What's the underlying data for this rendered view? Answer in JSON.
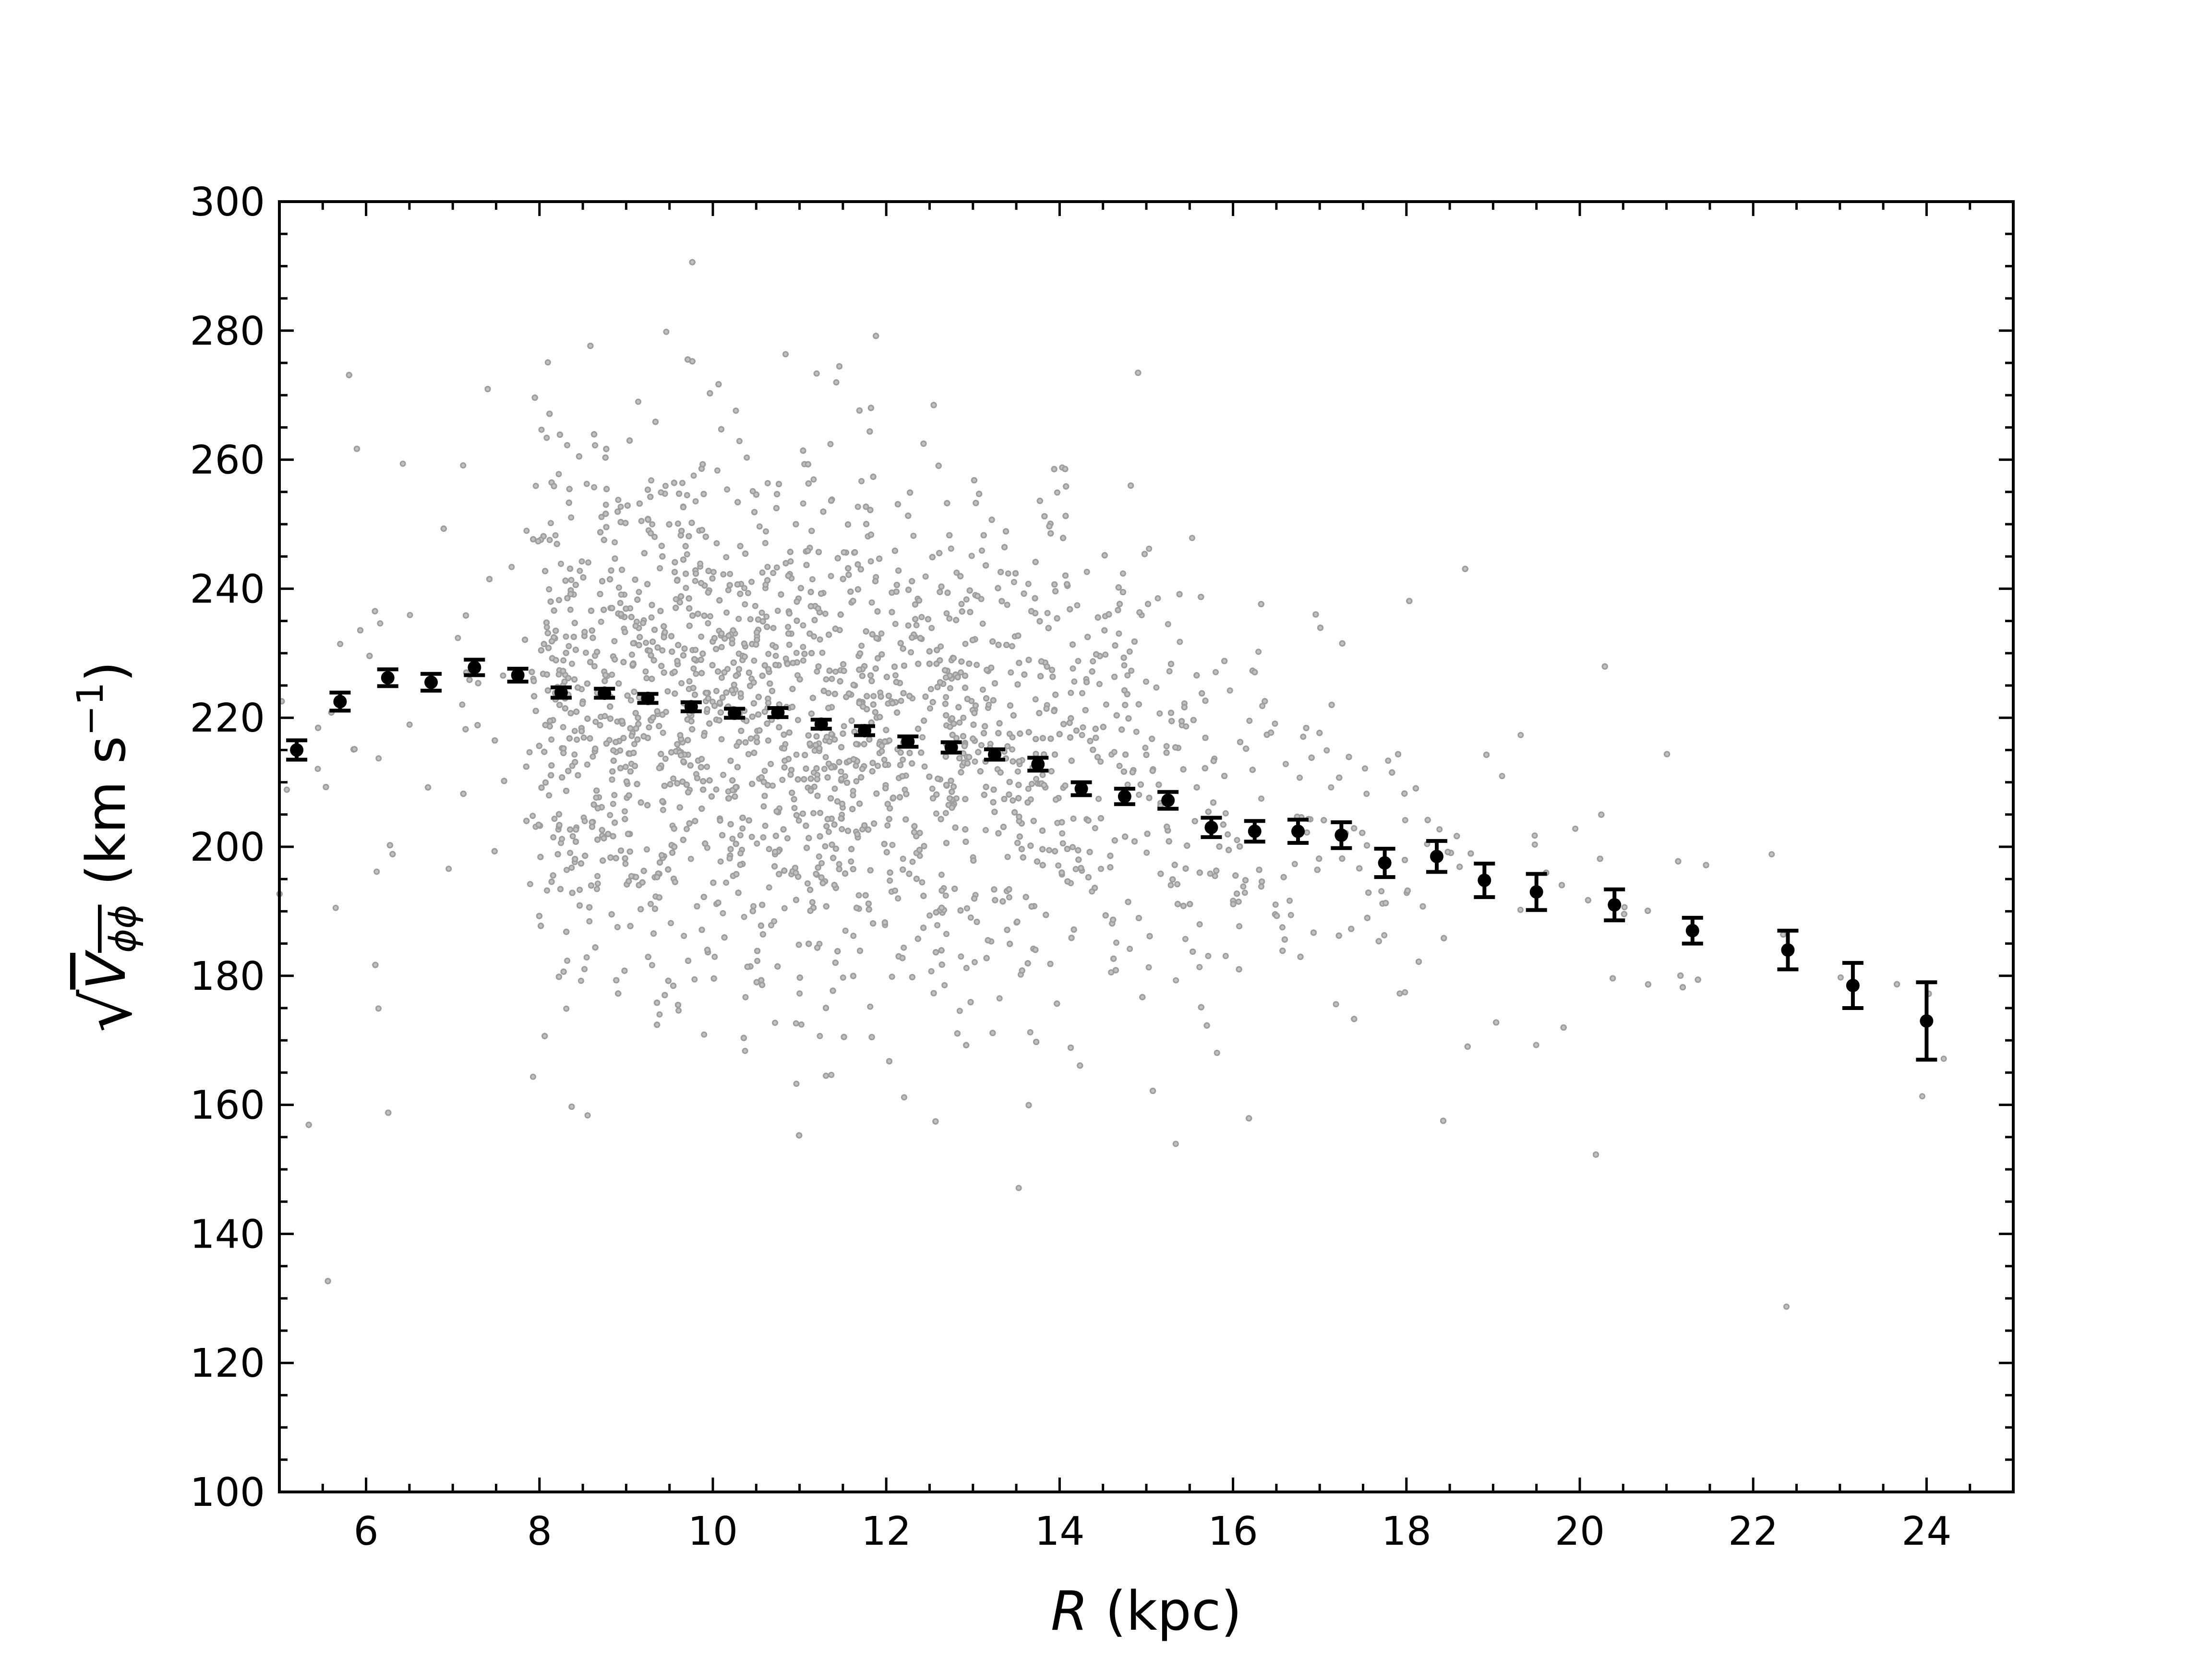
{
  "colors": {
    "scatter": "#a8a8a8",
    "binned": "#000000",
    "axes": "#000000",
    "background": "#ffffff"
  },
  "chart_data": {
    "type": "scatter",
    "xlabel": {
      "var": "R",
      "unit": " (kpc)"
    },
    "ylabel": {
      "root_symbol": "√",
      "var": "V",
      "sub": "ϕϕ",
      "unit": "(km s",
      "exp": "−1",
      "close": ")"
    },
    "xlim": [
      5,
      25
    ],
    "ylim": [
      100,
      300
    ],
    "xticks": [
      "6",
      "8",
      "10",
      "12",
      "14",
      "16",
      "18",
      "20",
      "22",
      "24"
    ],
    "yticks": [
      "100",
      "120",
      "140",
      "160",
      "180",
      "200",
      "220",
      "240",
      "260",
      "280",
      "300"
    ],
    "grid": false,
    "legend": false,
    "series": [
      {
        "style": "small open grey circles",
        "density_envelope": {
          "R": [
            5,
            6,
            7,
            7.8,
            8,
            9,
            10,
            11,
            12,
            13,
            14,
            15,
            16,
            17,
            18,
            19,
            20,
            21,
            22,
            23,
            24,
            24.5
          ],
          "center": [
            220,
            223,
            226,
            226,
            224,
            222,
            221,
            219,
            218,
            216,
            214,
            210,
            205,
            202,
            198,
            195,
            192,
            188,
            185,
            180,
            175,
            172
          ],
          "spread": [
            30,
            29,
            28,
            26,
            22,
            21,
            21,
            21,
            20,
            20,
            20,
            19,
            18,
            18,
            17,
            17,
            17,
            16,
            16,
            15,
            15,
            15
          ],
          "relative_density": [
            0.05,
            0.05,
            0.06,
            0.08,
            0.8,
            1.0,
            1.0,
            0.95,
            0.85,
            0.7,
            0.55,
            0.35,
            0.2,
            0.1,
            0.07,
            0.05,
            0.035,
            0.025,
            0.018,
            0.012,
            0.008,
            0.004
          ]
        }
      },
      {
        "style": "black filled circles with error bars",
        "x": [
          5.2,
          5.7,
          6.25,
          6.75,
          7.25,
          7.75,
          8.25,
          8.75,
          9.25,
          9.75,
          10.25,
          10.75,
          11.25,
          11.75,
          12.25,
          12.75,
          13.25,
          13.75,
          14.25,
          14.75,
          15.25,
          15.75,
          16.25,
          16.75,
          17.25,
          17.75,
          18.35,
          18.9,
          19.5,
          20.4,
          21.3,
          22.4,
          23.15,
          24.0
        ],
        "y": [
          215.0,
          222.5,
          226.2,
          225.5,
          227.8,
          226.6,
          223.9,
          223.8,
          223.0,
          221.7,
          220.7,
          220.8,
          219.0,
          218.0,
          216.3,
          215.4,
          214.3,
          212.8,
          209.0,
          207.8,
          207.2,
          203.0,
          202.4,
          202.4,
          201.8,
          197.5,
          198.5,
          194.8,
          193.0,
          191.0,
          187.0,
          184.0,
          178.5,
          173.0
        ],
        "yerr": [
          1.5,
          1.4,
          1.3,
          1.3,
          1.2,
          1.0,
          0.8,
          0.7,
          0.7,
          0.7,
          0.7,
          0.7,
          0.7,
          0.7,
          0.8,
          0.8,
          0.8,
          1.0,
          1.0,
          1.2,
          1.3,
          1.5,
          1.6,
          1.8,
          2.0,
          2.2,
          2.4,
          2.6,
          2.8,
          2.4,
          2.0,
          3.0,
          3.5,
          6.0
        ]
      }
    ]
  }
}
